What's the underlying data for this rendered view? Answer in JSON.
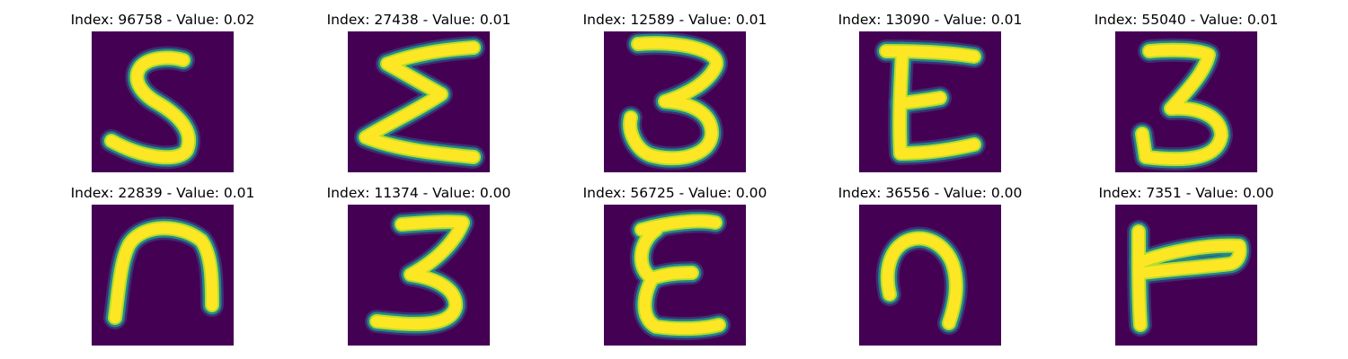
{
  "colors": {
    "background": "#440154",
    "stroke_core": "#fde725",
    "stroke_mid": "#b5de2b",
    "stroke_edge": "#21918c",
    "stroke_halo": "#3b528b"
  },
  "panels": [
    {
      "title": "Index: 96758 - Value: 0.02",
      "index": 96758,
      "value": 0.02,
      "glyph": "5"
    },
    {
      "title": "Index: 27438 - Value: 0.01",
      "index": 27438,
      "value": 0.01,
      "glyph": "Σ"
    },
    {
      "title": "Index: 12589 - Value: 0.01",
      "index": 12589,
      "value": 0.01,
      "glyph": "3"
    },
    {
      "title": "Index: 13090 - Value: 0.01",
      "index": 13090,
      "value": 0.01,
      "glyph": "E"
    },
    {
      "title": "Index: 55040 - Value: 0.01",
      "index": 55040,
      "value": 0.01,
      "glyph": "3"
    },
    {
      "title": "Index: 22839 - Value: 0.01",
      "index": 22839,
      "value": 0.01,
      "glyph": "n"
    },
    {
      "title": "Index: 11374 - Value: 0.00",
      "index": 11374,
      "value": 0.0,
      "glyph": "3"
    },
    {
      "title": "Index: 56725 - Value: 0.00",
      "index": 56725,
      "value": 0.0,
      "glyph": "E"
    },
    {
      "title": "Index: 36556 - Value: 0.00",
      "index": 36556,
      "value": 0.0,
      "glyph": "n"
    },
    {
      "title": "Index: 7351 - Value: 0.00",
      "index": 7351,
      "value": 0.0,
      "glyph": "r"
    }
  ]
}
